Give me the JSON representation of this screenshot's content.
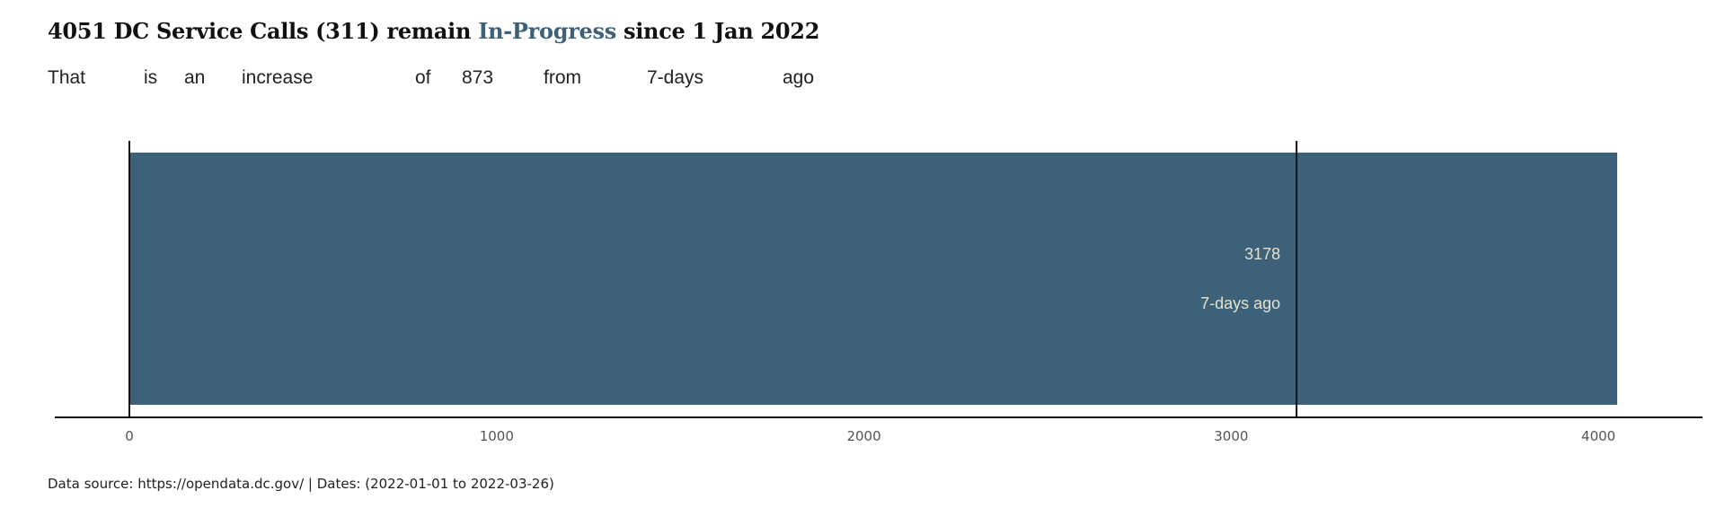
{
  "header": {
    "title_prefix": "4051 DC Service Calls (311) remain",
    "title_highlight": "In-Progress",
    "title_suffix": "since 1  Jan 2022",
    "subtitle_words": [
      "That",
      "is",
      "an",
      "increase",
      "of",
      "873",
      "from",
      "7-days",
      "ago"
    ]
  },
  "colors": {
    "bar": "#3d6178",
    "highlight": "#3d6178",
    "reference_label": "#e6e0cc",
    "axis": "#111111",
    "tick_label": "#555555"
  },
  "chart_data": {
    "type": "bar",
    "orientation": "horizontal",
    "value": 4051,
    "reference": {
      "value": 3178,
      "value_label": "3178",
      "label": "7-days ago"
    },
    "xlim": [
      0,
      4051
    ],
    "xticks": [
      0,
      1000,
      2000,
      3000,
      4000
    ],
    "xtick_labels": [
      "0",
      "1000",
      "2000",
      "3000",
      "4000"
    ],
    "grid": false
  },
  "footer": {
    "source": "Data source: https://opendata.dc.gov/ | Dates: (2022-01-01 to 2022-03-26)"
  }
}
